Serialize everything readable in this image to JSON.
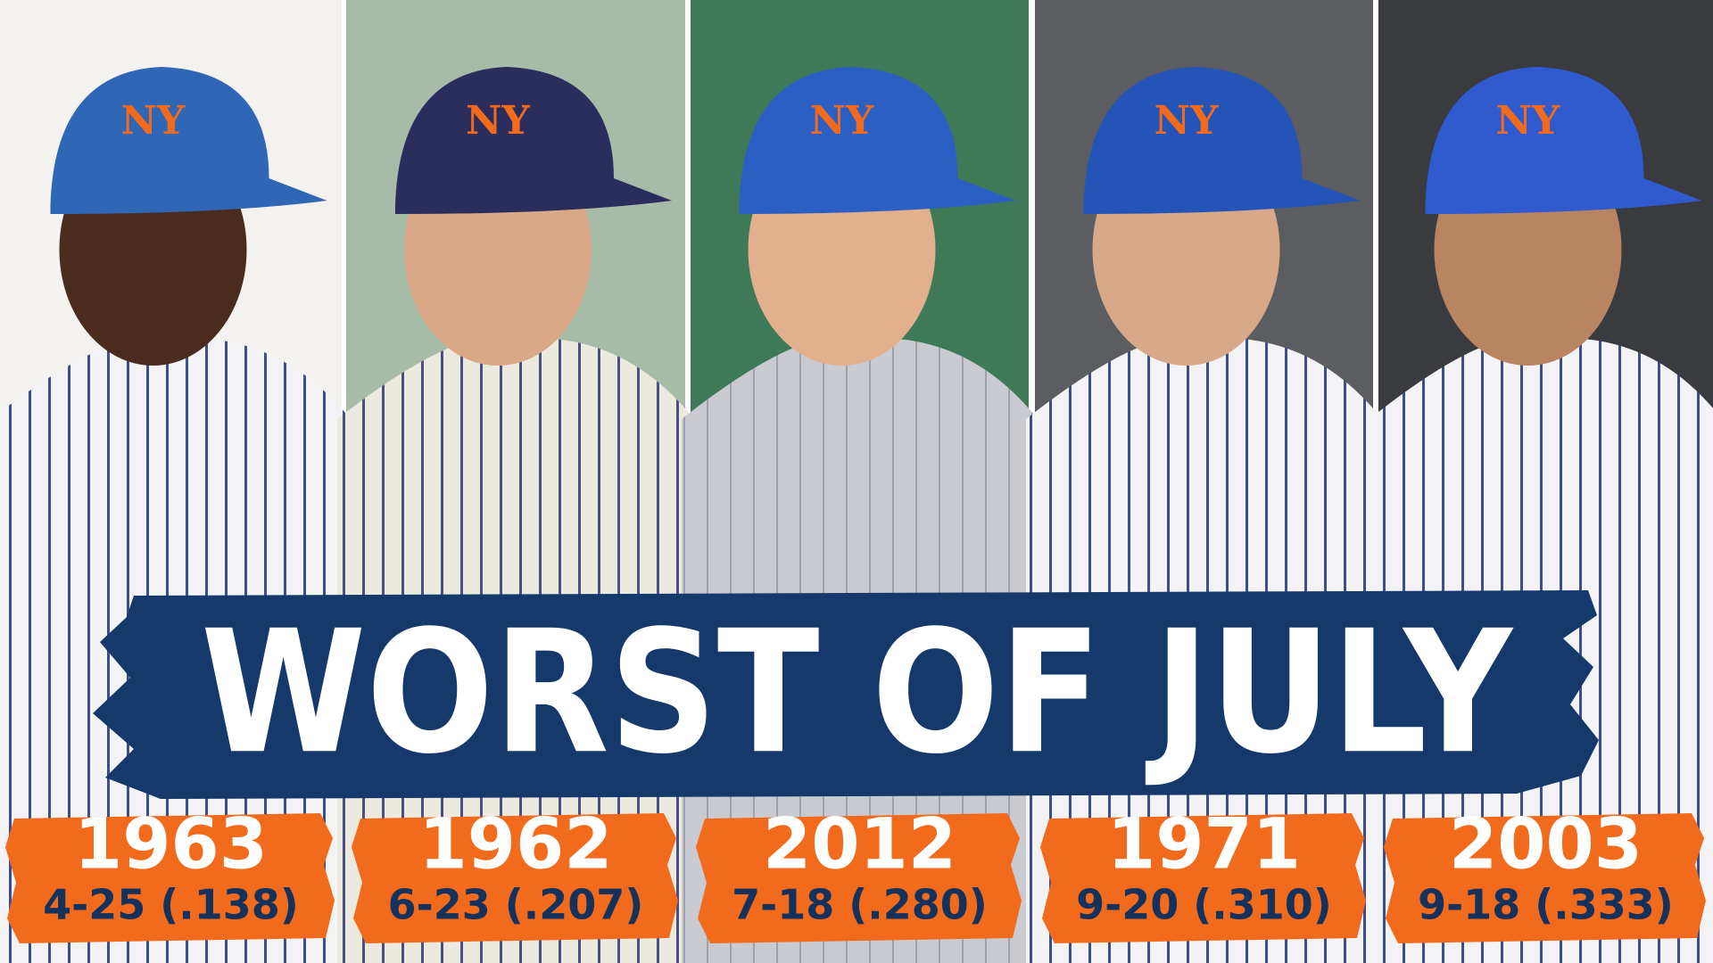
{
  "title": "WORST OF JULY",
  "panels": [
    {
      "year": "1963",
      "record": "4-25 (.138)"
    },
    {
      "year": "1962",
      "record": "6-23 (.207)"
    },
    {
      "year": "2012",
      "record": "7-18 (.280)"
    },
    {
      "year": "1971",
      "record": "9-20 (.310)"
    },
    {
      "year": "2003",
      "record": "9-18 (.333)"
    }
  ]
}
